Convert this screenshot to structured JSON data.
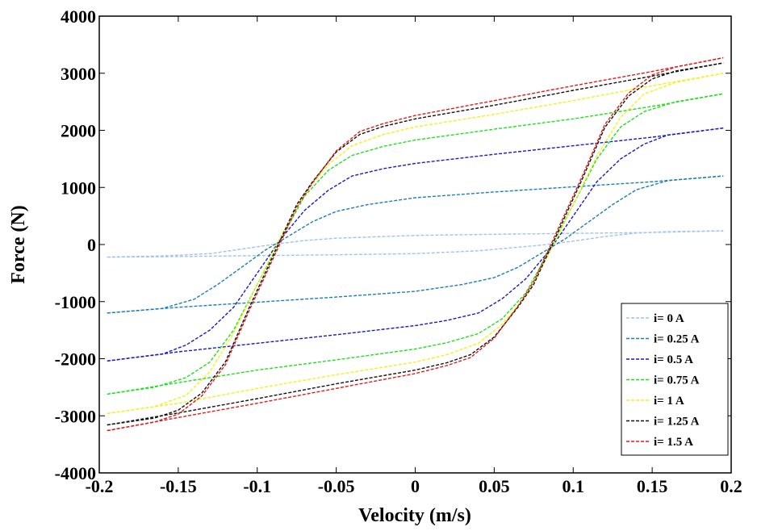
{
  "chart_data": {
    "type": "line",
    "title": "",
    "xlabel": "Velocity (m/s)",
    "ylabel": "Force (N)",
    "xlim": [
      -0.2,
      0.2
    ],
    "ylim": [
      -4000,
      4000
    ],
    "xticks": [
      -0.2,
      -0.15,
      -0.1,
      -0.05,
      0,
      0.05,
      0.1,
      0.15,
      0.2
    ],
    "yticks": [
      -4000,
      -3000,
      -2000,
      -1000,
      0,
      1000,
      2000,
      3000,
      4000
    ],
    "xtick_labels": [
      "-0.2",
      "-0.15",
      "-0.1",
      "-0.05",
      "0",
      "0.05",
      "0.1",
      "0.15",
      "0.2"
    ],
    "ytick_labels": [
      "-4000",
      "-3000",
      "-2000",
      "-1000",
      "0",
      "1000",
      "2000",
      "3000",
      "4000"
    ],
    "grid": false,
    "legend_position": "bottom-right",
    "series": [
      {
        "name": "i= 0 A",
        "color": "#a0c4e8",
        "upper": [
          [
            -0.195,
            -220
          ],
          [
            -0.16,
            -200
          ],
          [
            -0.13,
            -160
          ],
          [
            -0.115,
            -100
          ],
          [
            -0.1,
            -40
          ],
          [
            -0.085,
            20
          ],
          [
            -0.07,
            70
          ],
          [
            -0.05,
            110
          ],
          [
            0,
            160
          ],
          [
            0.05,
            180
          ],
          [
            0.1,
            195
          ],
          [
            0.15,
            210
          ],
          [
            0.195,
            240
          ]
        ],
        "lower": [
          [
            -0.195,
            -220
          ],
          [
            -0.15,
            -210
          ],
          [
            -0.1,
            -195
          ],
          [
            -0.05,
            -180
          ],
          [
            0,
            -160
          ],
          [
            0.04,
            -110
          ],
          [
            0.06,
            -60
          ],
          [
            0.08,
            -10
          ],
          [
            0.1,
            60
          ],
          [
            0.12,
            140
          ],
          [
            0.14,
            200
          ],
          [
            0.16,
            225
          ],
          [
            0.195,
            240
          ]
        ]
      },
      {
        "name": "i= 0.25 A",
        "color": "#1a7fb3",
        "upper": [
          [
            -0.195,
            -1200
          ],
          [
            -0.16,
            -1120
          ],
          [
            -0.14,
            -960
          ],
          [
            -0.125,
            -700
          ],
          [
            -0.11,
            -400
          ],
          [
            -0.095,
            -100
          ],
          [
            -0.08,
            150
          ],
          [
            -0.065,
            400
          ],
          [
            -0.05,
            580
          ],
          [
            -0.03,
            700
          ],
          [
            0,
            820
          ],
          [
            0.05,
            920
          ],
          [
            0.1,
            1010
          ],
          [
            0.15,
            1100
          ],
          [
            0.195,
            1200
          ]
        ],
        "lower": [
          [
            -0.195,
            -1200
          ],
          [
            -0.15,
            -1100
          ],
          [
            -0.1,
            -1010
          ],
          [
            -0.05,
            -920
          ],
          [
            0,
            -820
          ],
          [
            0.03,
            -700
          ],
          [
            0.05,
            -580
          ],
          [
            0.065,
            -400
          ],
          [
            0.08,
            -150
          ],
          [
            0.095,
            100
          ],
          [
            0.11,
            400
          ],
          [
            0.125,
            700
          ],
          [
            0.14,
            960
          ],
          [
            0.16,
            1120
          ],
          [
            0.195,
            1200
          ]
        ]
      },
      {
        "name": "i= 0.5 A",
        "color": "#1919c8",
        "upper": [
          [
            -0.195,
            -2040
          ],
          [
            -0.16,
            -1920
          ],
          [
            -0.145,
            -1760
          ],
          [
            -0.13,
            -1500
          ],
          [
            -0.115,
            -1100
          ],
          [
            -0.1,
            -500
          ],
          [
            -0.085,
            100
          ],
          [
            -0.07,
            600
          ],
          [
            -0.055,
            950
          ],
          [
            -0.04,
            1200
          ],
          [
            -0.02,
            1330
          ],
          [
            0,
            1420
          ],
          [
            0.05,
            1580
          ],
          [
            0.1,
            1730
          ],
          [
            0.15,
            1880
          ],
          [
            0.195,
            2040
          ]
        ],
        "lower": [
          [
            -0.195,
            -2040
          ],
          [
            -0.15,
            -1880
          ],
          [
            -0.1,
            -1730
          ],
          [
            -0.05,
            -1580
          ],
          [
            0,
            -1420
          ],
          [
            0.02,
            -1330
          ],
          [
            0.04,
            -1200
          ],
          [
            0.055,
            -950
          ],
          [
            0.07,
            -600
          ],
          [
            0.085,
            -100
          ],
          [
            0.1,
            500
          ],
          [
            0.115,
            1100
          ],
          [
            0.13,
            1500
          ],
          [
            0.145,
            1760
          ],
          [
            0.16,
            1920
          ],
          [
            0.195,
            2040
          ]
        ]
      },
      {
        "name": "i= 0.75 A",
        "color": "#1ee01e",
        "upper": [
          [
            -0.195,
            -2620
          ],
          [
            -0.165,
            -2500
          ],
          [
            -0.145,
            -2330
          ],
          [
            -0.13,
            -2060
          ],
          [
            -0.115,
            -1500
          ],
          [
            -0.1,
            -700
          ],
          [
            -0.085,
            100
          ],
          [
            -0.07,
            850
          ],
          [
            -0.055,
            1300
          ],
          [
            -0.04,
            1560
          ],
          [
            -0.02,
            1720
          ],
          [
            0,
            1830
          ],
          [
            0.05,
            2020
          ],
          [
            0.1,
            2200
          ],
          [
            0.15,
            2420
          ],
          [
            0.195,
            2640
          ]
        ],
        "lower": [
          [
            -0.195,
            -2620
          ],
          [
            -0.15,
            -2420
          ],
          [
            -0.1,
            -2200
          ],
          [
            -0.05,
            -2020
          ],
          [
            0,
            -1830
          ],
          [
            0.02,
            -1720
          ],
          [
            0.04,
            -1560
          ],
          [
            0.055,
            -1300
          ],
          [
            0.07,
            -850
          ],
          [
            0.085,
            -100
          ],
          [
            0.1,
            700
          ],
          [
            0.115,
            1500
          ],
          [
            0.13,
            2060
          ],
          [
            0.145,
            2330
          ],
          [
            0.165,
            2500
          ],
          [
            0.195,
            2640
          ]
        ]
      },
      {
        "name": "i= 1 A",
        "color": "#f2f21a",
        "upper": [
          [
            -0.195,
            -2960
          ],
          [
            -0.165,
            -2840
          ],
          [
            -0.145,
            -2640
          ],
          [
            -0.13,
            -2230
          ],
          [
            -0.115,
            -1550
          ],
          [
            -0.1,
            -700
          ],
          [
            -0.085,
            150
          ],
          [
            -0.07,
            900
          ],
          [
            -0.055,
            1400
          ],
          [
            -0.04,
            1730
          ],
          [
            -0.02,
            1930
          ],
          [
            0,
            2060
          ],
          [
            0.05,
            2280
          ],
          [
            0.1,
            2520
          ],
          [
            0.15,
            2780
          ],
          [
            0.195,
            3000
          ]
        ],
        "lower": [
          [
            -0.195,
            -2960
          ],
          [
            -0.15,
            -2780
          ],
          [
            -0.1,
            -2520
          ],
          [
            -0.05,
            -2280
          ],
          [
            0,
            -2060
          ],
          [
            0.02,
            -1930
          ],
          [
            0.04,
            -1730
          ],
          [
            0.055,
            -1400
          ],
          [
            0.07,
            -900
          ],
          [
            0.085,
            -150
          ],
          [
            0.1,
            700
          ],
          [
            0.115,
            1550
          ],
          [
            0.13,
            2230
          ],
          [
            0.145,
            2640
          ],
          [
            0.165,
            2840
          ],
          [
            0.195,
            3000
          ]
        ]
      },
      {
        "name": "i= 1.25 A",
        "color": "#111111",
        "upper": [
          [
            -0.195,
            -3160
          ],
          [
            -0.165,
            -3040
          ],
          [
            -0.15,
            -2900
          ],
          [
            -0.135,
            -2600
          ],
          [
            -0.12,
            -2050
          ],
          [
            -0.105,
            -1100
          ],
          [
            -0.09,
            -200
          ],
          [
            -0.075,
            700
          ],
          [
            -0.065,
            1100
          ],
          [
            -0.05,
            1620
          ],
          [
            -0.035,
            1930
          ],
          [
            -0.02,
            2070
          ],
          [
            0,
            2200
          ],
          [
            0.05,
            2440
          ],
          [
            0.1,
            2700
          ],
          [
            0.15,
            2950
          ],
          [
            0.195,
            3180
          ]
        ],
        "lower": [
          [
            -0.195,
            -3160
          ],
          [
            -0.15,
            -2950
          ],
          [
            -0.1,
            -2700
          ],
          [
            -0.05,
            -2440
          ],
          [
            0,
            -2200
          ],
          [
            0.02,
            -2070
          ],
          [
            0.035,
            -1930
          ],
          [
            0.05,
            -1620
          ],
          [
            0.065,
            -1100
          ],
          [
            0.075,
            -700
          ],
          [
            0.09,
            200
          ],
          [
            0.105,
            1100
          ],
          [
            0.12,
            2050
          ],
          [
            0.135,
            2600
          ],
          [
            0.15,
            2900
          ],
          [
            0.165,
            3040
          ],
          [
            0.195,
            3180
          ]
        ]
      },
      {
        "name": "i= 1.5 A",
        "color": "#e31a1a",
        "upper": [
          [
            -0.195,
            -3260
          ],
          [
            -0.165,
            -3110
          ],
          [
            -0.15,
            -2970
          ],
          [
            -0.135,
            -2650
          ],
          [
            -0.12,
            -2100
          ],
          [
            -0.105,
            -1150
          ],
          [
            -0.09,
            -250
          ],
          [
            -0.075,
            650
          ],
          [
            -0.065,
            1080
          ],
          [
            -0.05,
            1640
          ],
          [
            -0.035,
            1980
          ],
          [
            -0.02,
            2120
          ],
          [
            0,
            2260
          ],
          [
            0.05,
            2520
          ],
          [
            0.1,
            2780
          ],
          [
            0.15,
            3030
          ],
          [
            0.195,
            3270
          ]
        ],
        "lower": [
          [
            -0.195,
            -3260
          ],
          [
            -0.15,
            -3030
          ],
          [
            -0.1,
            -2780
          ],
          [
            -0.05,
            -2520
          ],
          [
            0,
            -2260
          ],
          [
            0.02,
            -2120
          ],
          [
            0.035,
            -1980
          ],
          [
            0.05,
            -1640
          ],
          [
            0.065,
            -1080
          ],
          [
            0.075,
            -650
          ],
          [
            0.09,
            250
          ],
          [
            0.105,
            1150
          ],
          [
            0.12,
            2100
          ],
          [
            0.135,
            2650
          ],
          [
            0.15,
            2970
          ],
          [
            0.165,
            3110
          ],
          [
            0.195,
            3270
          ]
        ]
      }
    ]
  }
}
